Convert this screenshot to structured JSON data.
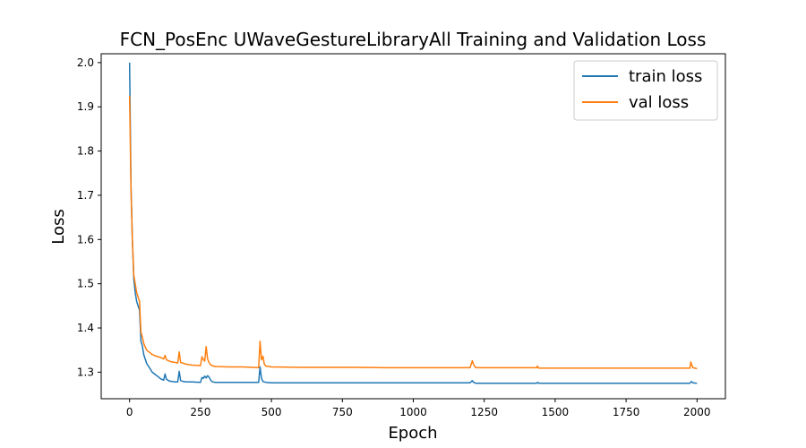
{
  "chart_data": {
    "type": "line",
    "title": "FCN_PosEnc UWaveGestureLibraryAll Training and Validation Loss",
    "xlabel": "Epoch",
    "ylabel": "Loss",
    "xlim": [
      -100,
      2100
    ],
    "ylim": [
      1.24,
      2.02
    ],
    "xticks": [
      0,
      250,
      500,
      750,
      1000,
      1250,
      1500,
      1750,
      2000
    ],
    "yticks": [
      1.3,
      1.4,
      1.5,
      1.6,
      1.7,
      1.8,
      1.9,
      2.0
    ],
    "ytick_labels": [
      "1.3",
      "1.4",
      "1.5",
      "1.6",
      "1.7",
      "1.8",
      "1.9",
      "2.0"
    ],
    "legend_position": "top-right",
    "grid": false,
    "series": [
      {
        "name": "train loss",
        "color": "#1f77b4",
        "x": [
          0,
          5,
          10,
          15,
          20,
          25,
          30,
          35,
          40,
          45,
          50,
          60,
          70,
          80,
          90,
          100,
          110,
          120,
          125,
          130,
          140,
          150,
          160,
          170,
          175,
          180,
          190,
          200,
          220,
          250,
          255,
          260,
          265,
          270,
          275,
          280,
          285,
          290,
          300,
          350,
          400,
          455,
          460,
          462,
          465,
          470,
          480,
          500,
          600,
          700,
          800,
          900,
          1000,
          1100,
          1200,
          1208,
          1212,
          1220,
          1300,
          1400,
          1435,
          1438,
          1442,
          1500,
          1600,
          1700,
          1800,
          1900,
          1975,
          1980,
          1985,
          2000
        ],
        "y": [
          2.0,
          1.72,
          1.6,
          1.51,
          1.48,
          1.46,
          1.45,
          1.44,
          1.37,
          1.36,
          1.34,
          1.32,
          1.31,
          1.3,
          1.295,
          1.29,
          1.285,
          1.282,
          1.296,
          1.284,
          1.28,
          1.279,
          1.278,
          1.278,
          1.302,
          1.281,
          1.279,
          1.278,
          1.278,
          1.277,
          1.288,
          1.286,
          1.291,
          1.287,
          1.292,
          1.289,
          1.283,
          1.279,
          1.277,
          1.277,
          1.277,
          1.277,
          1.312,
          1.3,
          1.286,
          1.279,
          1.277,
          1.276,
          1.276,
          1.276,
          1.276,
          1.276,
          1.276,
          1.276,
          1.276,
          1.281,
          1.277,
          1.275,
          1.275,
          1.275,
          1.275,
          1.277,
          1.275,
          1.275,
          1.275,
          1.275,
          1.275,
          1.275,
          1.275,
          1.279,
          1.276,
          1.275
        ]
      },
      {
        "name": "val loss",
        "color": "#ff7f0e",
        "x": [
          0,
          5,
          10,
          15,
          20,
          25,
          30,
          35,
          40,
          45,
          50,
          60,
          70,
          80,
          90,
          100,
          110,
          120,
          125,
          130,
          140,
          150,
          160,
          170,
          175,
          180,
          190,
          200,
          220,
          250,
          255,
          260,
          265,
          270,
          275,
          280,
          285,
          290,
          300,
          350,
          400,
          455,
          460,
          462,
          465,
          470,
          475,
          480,
          500,
          600,
          700,
          800,
          900,
          1000,
          1100,
          1200,
          1208,
          1212,
          1220,
          1300,
          1400,
          1435,
          1438,
          1442,
          1500,
          1600,
          1700,
          1800,
          1900,
          1975,
          1978,
          1982,
          1985,
          2000
        ],
        "y": [
          1.925,
          1.71,
          1.6,
          1.52,
          1.5,
          1.48,
          1.47,
          1.46,
          1.39,
          1.38,
          1.365,
          1.35,
          1.345,
          1.34,
          1.337,
          1.335,
          1.333,
          1.33,
          1.338,
          1.328,
          1.325,
          1.323,
          1.322,
          1.321,
          1.346,
          1.322,
          1.32,
          1.318,
          1.316,
          1.315,
          1.335,
          1.328,
          1.325,
          1.358,
          1.33,
          1.322,
          1.317,
          1.315,
          1.313,
          1.312,
          1.312,
          1.31,
          1.37,
          1.35,
          1.328,
          1.336,
          1.318,
          1.314,
          1.312,
          1.311,
          1.311,
          1.311,
          1.31,
          1.31,
          1.31,
          1.31,
          1.326,
          1.318,
          1.31,
          1.31,
          1.31,
          1.31,
          1.314,
          1.309,
          1.309,
          1.309,
          1.309,
          1.309,
          1.309,
          1.309,
          1.323,
          1.316,
          1.31,
          1.308
        ]
      }
    ]
  }
}
